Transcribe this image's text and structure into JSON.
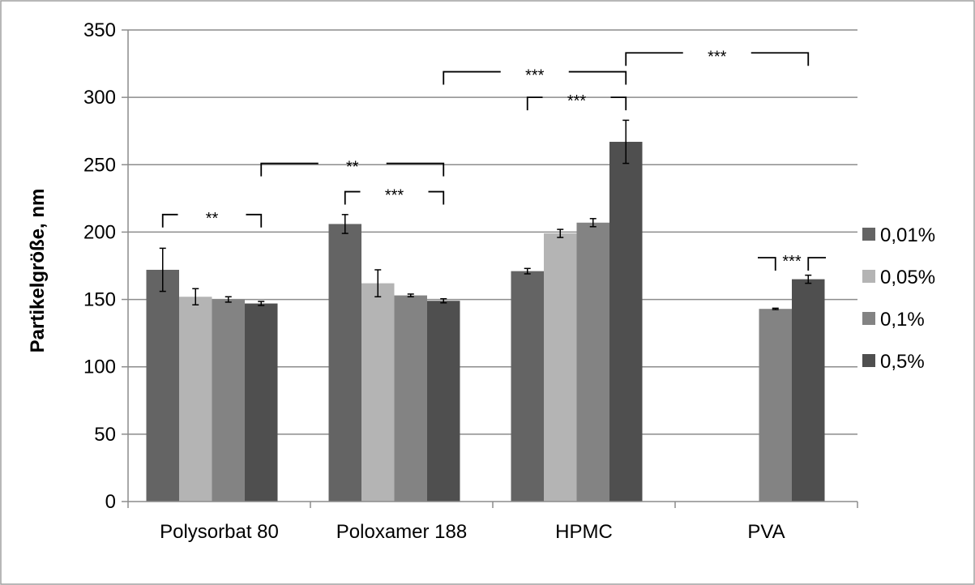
{
  "chart_data": {
    "type": "bar",
    "ylabel": "Partikelgröße, nm",
    "xlabel": "",
    "ylim": [
      0,
      350
    ],
    "yticks": [
      0,
      50,
      100,
      150,
      200,
      250,
      300,
      350
    ],
    "grid": true,
    "legend_position": "right",
    "categories": [
      "Polysorbat 80",
      "Poloxamer 188",
      "HPMC",
      "PVA"
    ],
    "series": [
      {
        "name": "0,01%",
        "color": "#646464",
        "values": [
          172,
          206,
          171,
          null
        ],
        "errors": [
          16,
          7,
          2,
          null
        ]
      },
      {
        "name": "0,05%",
        "color": "#b4b4b4",
        "values": [
          152,
          162,
          199,
          null
        ],
        "errors": [
          6,
          10,
          3,
          null
        ]
      },
      {
        "name": "0,1%",
        "color": "#838383",
        "values": [
          150,
          153,
          207,
          143
        ],
        "errors": [
          2,
          1,
          3,
          0.5
        ]
      },
      {
        "name": "0,5%",
        "color": "#4f4f4f",
        "values": [
          147,
          149,
          267,
          165
        ],
        "errors": [
          1.5,
          1.5,
          16,
          3
        ]
      }
    ],
    "significance": [
      {
        "label": "**",
        "from": [
          0,
          0
        ],
        "to": [
          0,
          3
        ],
        "y": 213
      },
      {
        "label": "**",
        "from": [
          0,
          3
        ],
        "to": [
          1,
          3
        ],
        "y": 251
      },
      {
        "label": "***",
        "from": [
          1,
          0
        ],
        "to": [
          1,
          3
        ],
        "y": 230
      },
      {
        "label": "***",
        "from": [
          1,
          3
        ],
        "to": [
          2,
          3
        ],
        "y": 319
      },
      {
        "label": "***",
        "from": [
          2,
          0
        ],
        "to": [
          2,
          3
        ],
        "y": 300
      },
      {
        "label": "***",
        "from": [
          2,
          3
        ],
        "to": [
          3,
          3
        ],
        "y": 333
      },
      {
        "label": "***",
        "from": [
          3,
          2
        ],
        "to": [
          3,
          3
        ],
        "y": 181
      }
    ]
  }
}
